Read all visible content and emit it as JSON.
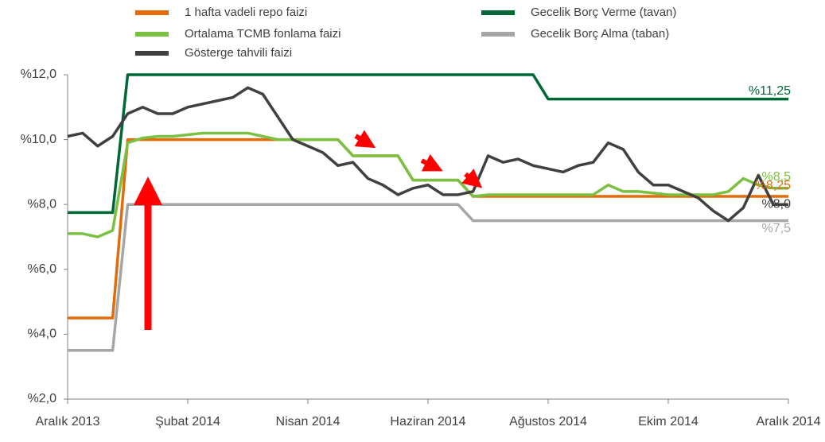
{
  "chart_data": {
    "type": "line",
    "x": [
      "Aralık 2013",
      null,
      null,
      null,
      null,
      null,
      null,
      null,
      "Şubat 2014",
      null,
      null,
      null,
      null,
      null,
      null,
      null,
      "Nisan 2014",
      null,
      null,
      null,
      null,
      null,
      null,
      null,
      "Haziran 2014",
      null,
      null,
      null,
      null,
      null,
      null,
      null,
      "Ağustos 2014",
      null,
      null,
      null,
      null,
      null,
      null,
      null,
      "Ekim 2014",
      null,
      null,
      null,
      null,
      null,
      null,
      null,
      "Aralık 2014"
    ],
    "ylim": [
      2,
      12
    ],
    "yticks": [
      {
        "value": 2,
        "label": "%2,0"
      },
      {
        "value": 4,
        "label": "%4,0"
      },
      {
        "value": 6,
        "label": "%6,0"
      },
      {
        "value": 8,
        "label": "%8,0"
      },
      {
        "value": 10,
        "label": "%10,0"
      },
      {
        "value": 12,
        "label": "%12,0"
      }
    ],
    "series": [
      {
        "name": "1 hafta vadeli repo faizi",
        "color": "#e36c0a",
        "values": [
          4.5,
          4.5,
          4.5,
          4.5,
          10,
          10,
          10,
          10,
          10,
          10,
          10,
          10,
          10,
          10,
          10,
          10,
          10,
          10,
          10,
          9.5,
          9.5,
          9.5,
          9.5,
          8.75,
          8.75,
          8.75,
          8.75,
          8.25,
          8.25,
          8.25,
          8.25,
          8.25,
          8.25,
          8.25,
          8.25,
          8.25,
          8.25,
          8.25,
          8.25,
          8.25,
          8.25,
          8.25,
          8.25,
          8.25,
          8.25,
          8.25,
          8.25,
          8.25,
          8.25
        ],
        "value_labels": [
          null,
          null,
          null,
          null,
          null,
          null,
          null,
          null,
          null,
          null,
          null,
          null,
          null,
          null,
          null,
          null,
          null,
          null,
          null,
          null,
          null,
          null,
          null,
          null,
          null,
          null,
          null,
          null,
          null,
          null,
          null,
          null,
          null,
          null,
          null,
          null,
          null,
          null,
          null,
          null,
          null,
          null,
          null,
          null,
          null,
          null,
          null,
          null,
          "%8,25"
        ]
      },
      {
        "name": "Ortalama TCMB fonlama faizi",
        "color": "#7ac143",
        "values": [
          7.1,
          7.1,
          7.0,
          7.2,
          9.9,
          10.05,
          10.1,
          10.1,
          10.15,
          10.2,
          10.2,
          10.2,
          10.2,
          10.1,
          10.0,
          10.0,
          10.0,
          10.0,
          10.0,
          9.5,
          9.5,
          9.5,
          9.5,
          8.75,
          8.75,
          8.75,
          8.75,
          8.25,
          8.3,
          8.3,
          8.3,
          8.3,
          8.3,
          8.3,
          8.3,
          8.3,
          8.6,
          8.4,
          8.4,
          8.35,
          8.3,
          8.3,
          8.3,
          8.3,
          8.4,
          8.8,
          8.6,
          8.5,
          8.5
        ],
        "value_labels": [
          null,
          null,
          null,
          null,
          null,
          null,
          null,
          null,
          null,
          null,
          null,
          null,
          null,
          null,
          null,
          null,
          null,
          null,
          null,
          null,
          null,
          null,
          null,
          null,
          null,
          null,
          null,
          null,
          null,
          null,
          null,
          null,
          null,
          null,
          null,
          null,
          null,
          null,
          null,
          null,
          null,
          null,
          null,
          null,
          null,
          null,
          null,
          null,
          "%8,5"
        ]
      },
      {
        "name": "Gösterge tahvili faizi",
        "color": "#404040",
        "values": [
          10.1,
          10.2,
          9.8,
          10.1,
          10.8,
          11.0,
          10.8,
          10.8,
          11.0,
          11.1,
          11.2,
          11.3,
          11.6,
          11.4,
          10.7,
          10.0,
          9.8,
          9.6,
          9.2,
          9.3,
          8.8,
          8.6,
          8.3,
          8.5,
          8.6,
          8.3,
          8.3,
          8.4,
          9.5,
          9.3,
          9.4,
          9.2,
          9.1,
          9.0,
          9.2,
          9.3,
          9.9,
          9.7,
          9.0,
          8.6,
          8.6,
          8.4,
          8.2,
          7.8,
          7.5,
          7.9,
          8.9,
          8.0,
          8.0
        ],
        "value_labels": [
          null,
          null,
          null,
          null,
          null,
          null,
          null,
          null,
          null,
          null,
          null,
          null,
          null,
          null,
          null,
          null,
          null,
          null,
          null,
          null,
          null,
          null,
          null,
          null,
          null,
          null,
          null,
          null,
          null,
          null,
          null,
          null,
          null,
          null,
          null,
          null,
          null,
          null,
          null,
          null,
          null,
          null,
          null,
          null,
          null,
          null,
          null,
          null,
          "%8,0"
        ]
      },
      {
        "name": "Gecelik Borç Verme (tavan)",
        "color": "#006837",
        "values": [
          7.75,
          7.75,
          7.75,
          7.75,
          12,
          12,
          12,
          12,
          12,
          12,
          12,
          12,
          12,
          12,
          12,
          12,
          12,
          12,
          12,
          12,
          12,
          12,
          12,
          12,
          12,
          12,
          12,
          12,
          12,
          12,
          12,
          12,
          11.25,
          11.25,
          11.25,
          11.25,
          11.25,
          11.25,
          11.25,
          11.25,
          11.25,
          11.25,
          11.25,
          11.25,
          11.25,
          11.25,
          11.25,
          11.25,
          11.25
        ],
        "value_labels": [
          null,
          null,
          null,
          null,
          null,
          null,
          null,
          null,
          null,
          null,
          null,
          null,
          null,
          null,
          null,
          null,
          null,
          null,
          null,
          null,
          null,
          null,
          null,
          null,
          null,
          null,
          null,
          null,
          null,
          null,
          null,
          null,
          null,
          null,
          null,
          null,
          null,
          null,
          null,
          null,
          null,
          null,
          null,
          null,
          null,
          null,
          null,
          null,
          "%11,25"
        ]
      },
      {
        "name": "Gecelik Borç Alma (taban)",
        "color": "#a6a6a6",
        "values": [
          3.5,
          3.5,
          3.5,
          3.5,
          8,
          8,
          8,
          8,
          8,
          8,
          8,
          8,
          8,
          8,
          8,
          8,
          8,
          8,
          8,
          8,
          8,
          8,
          8,
          8,
          8,
          8,
          8,
          7.5,
          7.5,
          7.5,
          7.5,
          7.5,
          7.5,
          7.5,
          7.5,
          7.5,
          7.5,
          7.5,
          7.5,
          7.5,
          7.5,
          7.5,
          7.5,
          7.5,
          7.5,
          7.5,
          7.5,
          7.5,
          7.5
        ],
        "value_labels": [
          null,
          null,
          null,
          null,
          null,
          null,
          null,
          null,
          null,
          null,
          null,
          null,
          null,
          null,
          null,
          null,
          null,
          null,
          null,
          null,
          null,
          null,
          null,
          null,
          null,
          null,
          null,
          null,
          null,
          null,
          null,
          null,
          null,
          null,
          null,
          null,
          null,
          null,
          null,
          null,
          null,
          null,
          null,
          null,
          null,
          null,
          null,
          null,
          "%7,5"
        ]
      }
    ]
  }
}
